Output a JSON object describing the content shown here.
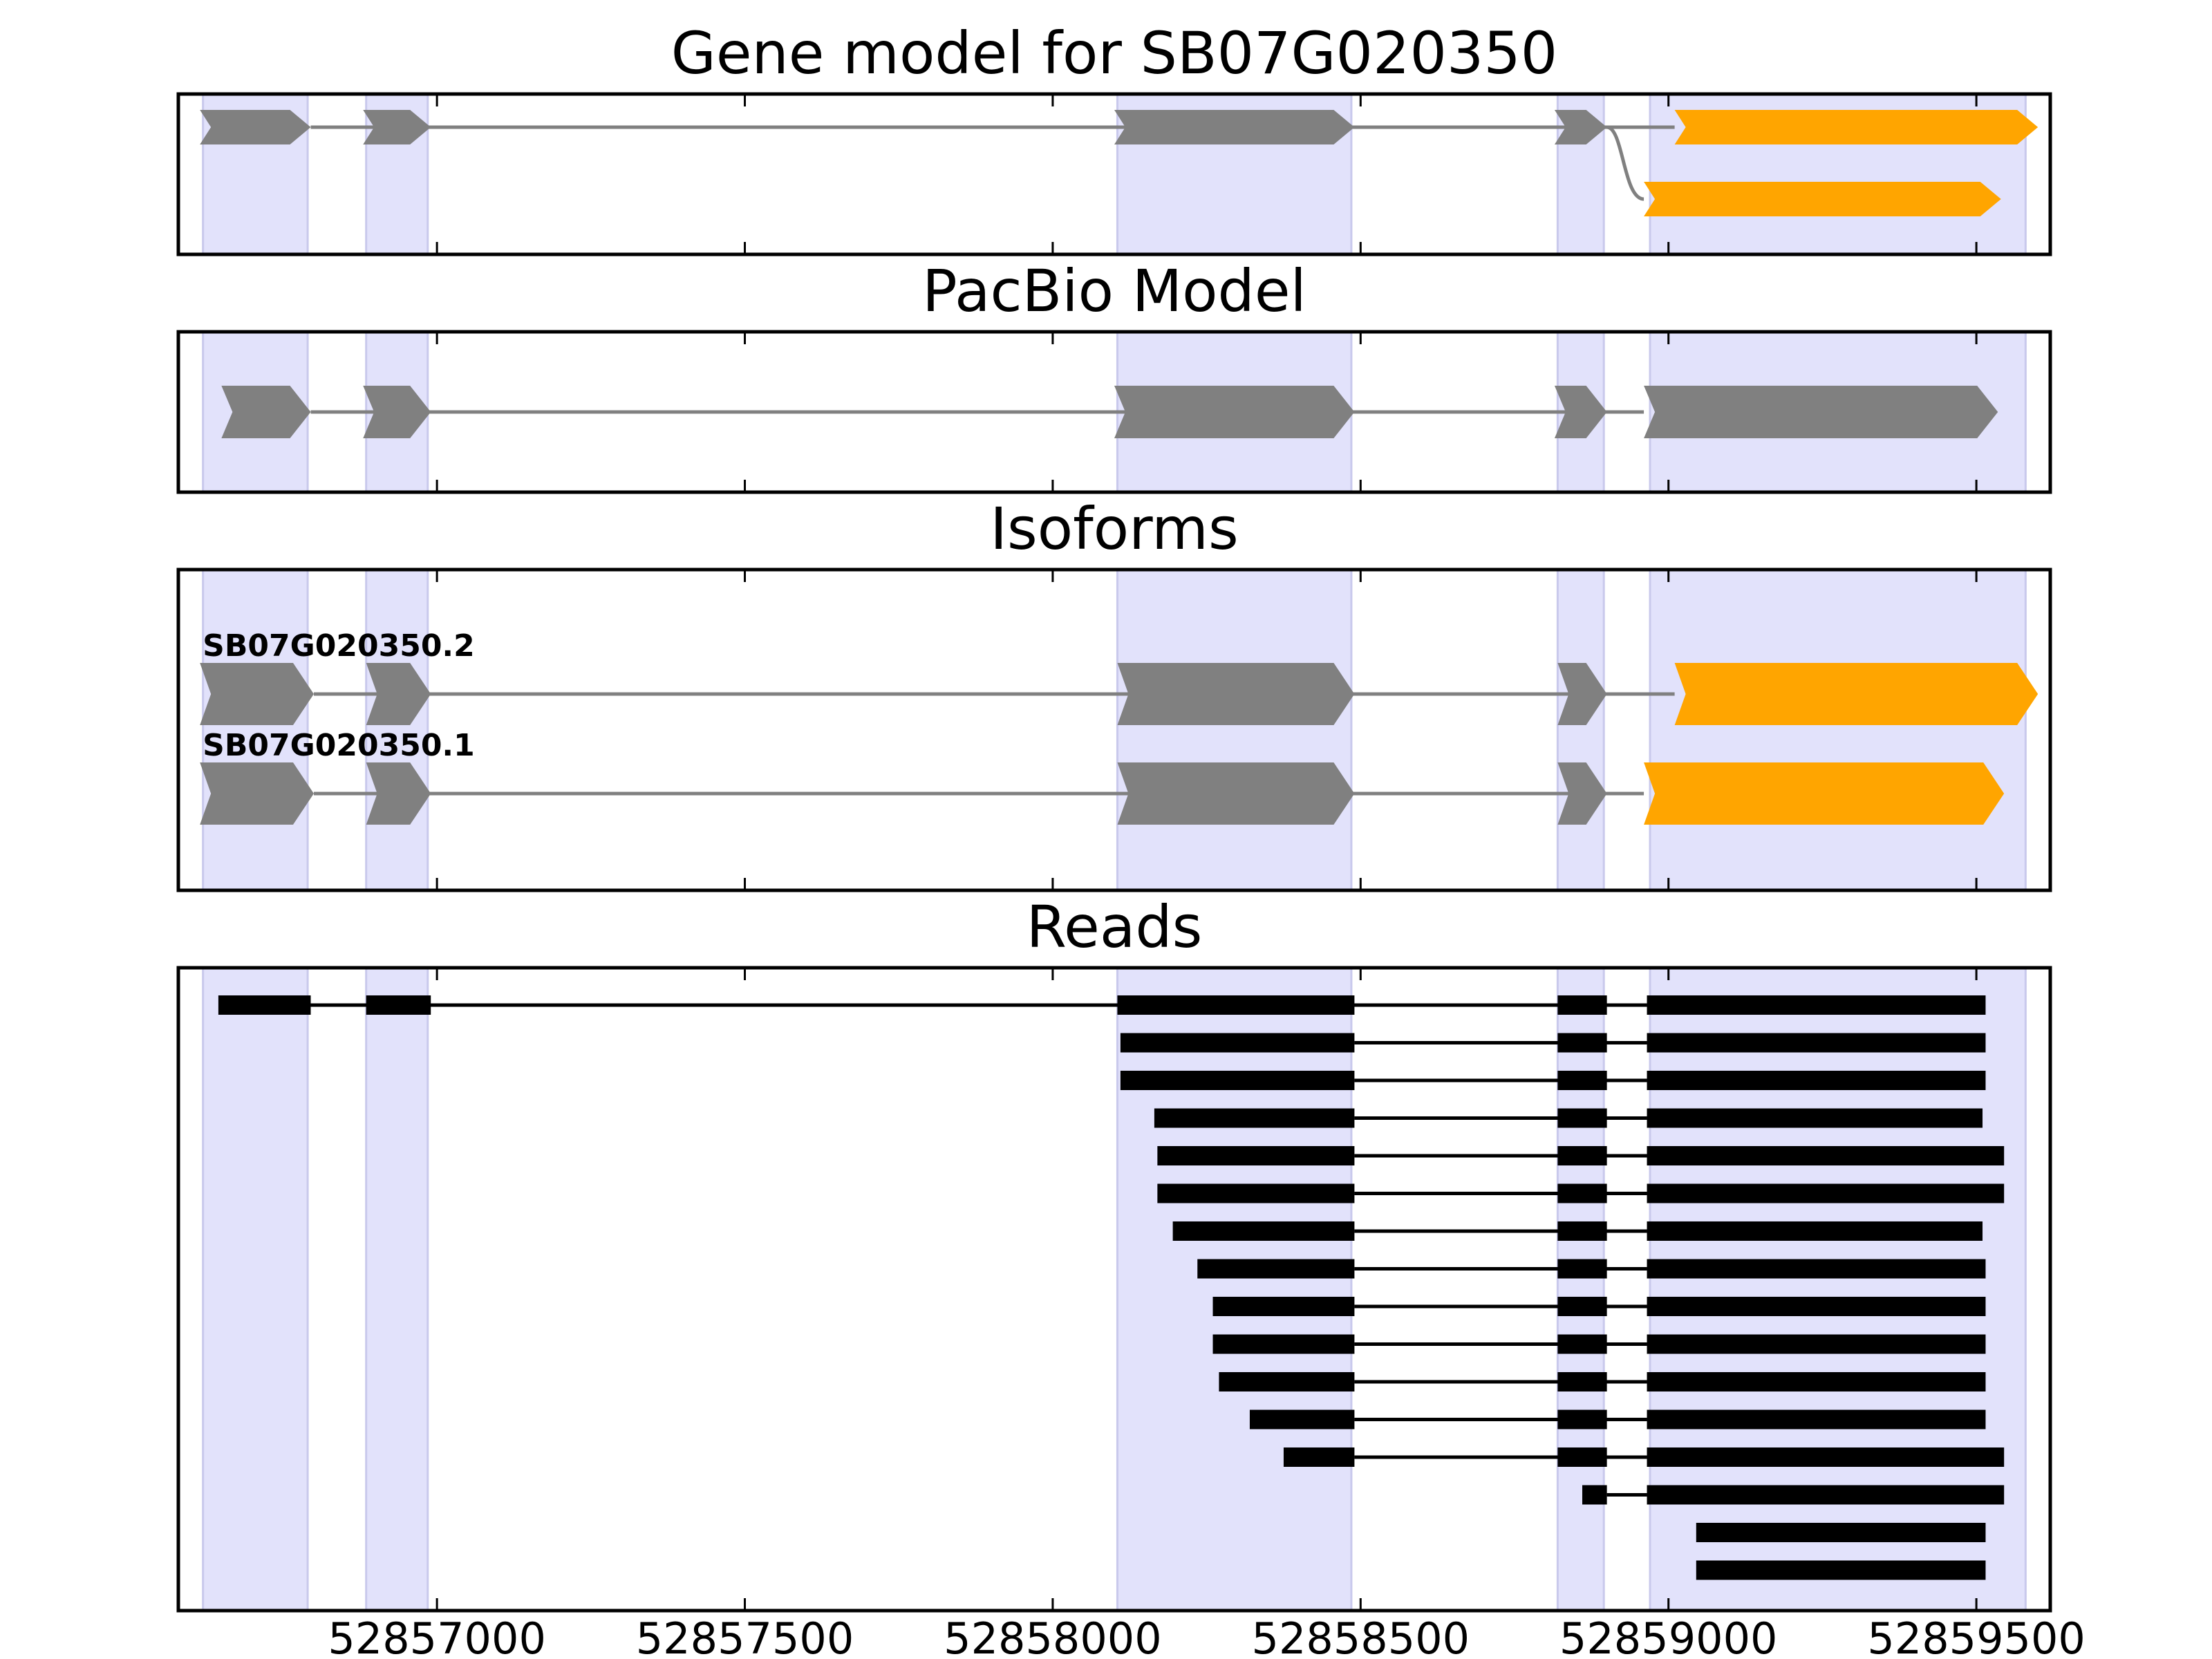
{
  "chart_data": {
    "type": "gene-model",
    "xaxis": {
      "range": [
        52856580,
        52859620
      ],
      "ticks": [
        52857000,
        52857500,
        52858000,
        52858500,
        52859000,
        52859500
      ],
      "tick_labels": [
        "52857000",
        "52857500",
        "52858000",
        "52858500",
        "52859000",
        "52859500"
      ]
    },
    "colors": {
      "exon_band": "#e2e2fb",
      "noncoding": "#808080",
      "highlight": "#ffa500",
      "read": "#000000"
    },
    "exon_bands": [
      [
        52856620,
        52856790
      ],
      [
        52856885,
        52856985
      ],
      [
        52858105,
        52858485
      ],
      [
        52858820,
        52858895
      ],
      [
        52858970,
        52859580
      ]
    ],
    "panels": [
      {
        "title": "Gene model for SB07G020350",
        "transcripts": [
          {
            "label": "",
            "exons": [
              [
                52856615,
                52856795
              ],
              [
                52856880,
                52856990
              ],
              [
                52858100,
                52858490
              ],
              [
                52858815,
                52858900
              ],
              [
                52859010,
                52859600
              ]
            ],
            "highlight_exons": [
              4
            ]
          },
          {
            "label": "",
            "exons": [
              [
                52858960,
                52859540
              ]
            ],
            "highlight_exons": [
              0
            ],
            "connector_from": 52858900
          }
        ]
      },
      {
        "title": "PacBio Model",
        "transcripts": [
          {
            "label": "",
            "exons": [
              [
                52856650,
                52856795
              ],
              [
                52856880,
                52856990
              ],
              [
                52858100,
                52858490
              ],
              [
                52858815,
                52858900
              ],
              [
                52858960,
                52859535
              ]
            ],
            "highlight_exons": []
          }
        ]
      },
      {
        "title": "Isoforms",
        "transcripts": [
          {
            "label": "SB07G020350.2",
            "exons": [
              [
                52856615,
                52856800
              ],
              [
                52856885,
                52856990
              ],
              [
                52858105,
                52858490
              ],
              [
                52858820,
                52858900
              ],
              [
                52859010,
                52859600
              ]
            ],
            "highlight_exons": [
              4
            ]
          },
          {
            "label": "SB07G020350.1",
            "exons": [
              [
                52856615,
                52856800
              ],
              [
                52856885,
                52856990
              ],
              [
                52858105,
                52858490
              ],
              [
                52858820,
                52858900
              ],
              [
                52858960,
                52859545
              ]
            ],
            "highlight_exons": [
              4
            ]
          }
        ]
      },
      {
        "title": "Reads",
        "reads": [
          [
            [
              52856645,
              52856795
            ],
            [
              52856885,
              52856990
            ],
            [
              52858105,
              52858490
            ],
            [
              52858820,
              52858900
            ],
            [
              52858965,
              52859515
            ]
          ],
          [
            [
              52858110,
              52858490
            ],
            [
              52858820,
              52858900
            ],
            [
              52858965,
              52859515
            ]
          ],
          [
            [
              52858110,
              52858490
            ],
            [
              52858820,
              52858900
            ],
            [
              52858965,
              52859515
            ]
          ],
          [
            [
              52858165,
              52858490
            ],
            [
              52858820,
              52858900
            ],
            [
              52858965,
              52859510
            ]
          ],
          [
            [
              52858170,
              52858490
            ],
            [
              52858820,
              52858900
            ],
            [
              52858965,
              52859545
            ]
          ],
          [
            [
              52858170,
              52858490
            ],
            [
              52858820,
              52858900
            ],
            [
              52858965,
              52859545
            ]
          ],
          [
            [
              52858195,
              52858490
            ],
            [
              52858820,
              52858900
            ],
            [
              52858965,
              52859510
            ]
          ],
          [
            [
              52858235,
              52858490
            ],
            [
              52858820,
              52858900
            ],
            [
              52858965,
              52859515
            ]
          ],
          [
            [
              52858260,
              52858490
            ],
            [
              52858820,
              52858900
            ],
            [
              52858965,
              52859515
            ]
          ],
          [
            [
              52858260,
              52858490
            ],
            [
              52858820,
              52858900
            ],
            [
              52858965,
              52859515
            ]
          ],
          [
            [
              52858270,
              52858490
            ],
            [
              52858820,
              52858900
            ],
            [
              52858965,
              52859515
            ]
          ],
          [
            [
              52858320,
              52858490
            ],
            [
              52858820,
              52858900
            ],
            [
              52858965,
              52859515
            ]
          ],
          [
            [
              52858375,
              52858490
            ],
            [
              52858820,
              52858900
            ],
            [
              52858965,
              52859545
            ]
          ],
          [
            [
              52858860,
              52858900
            ],
            [
              52858965,
              52859545
            ]
          ],
          [
            [
              52859045,
              52859515
            ]
          ],
          [
            [
              52859045,
              52859515
            ]
          ]
        ]
      }
    ]
  }
}
